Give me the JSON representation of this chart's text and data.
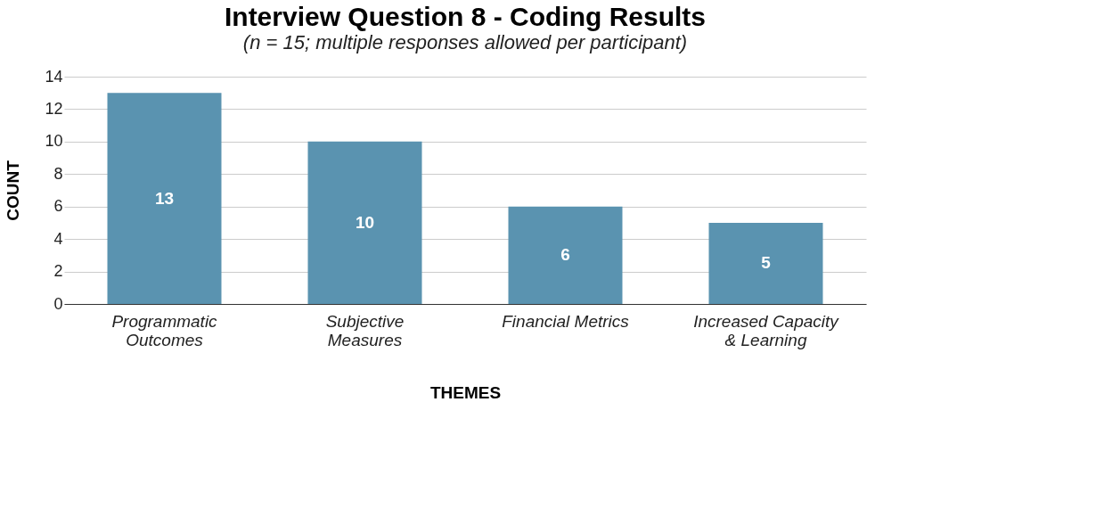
{
  "chart_data": {
    "type": "bar",
    "title": "Interview Question 8 - Coding Results",
    "subtitle": "(n = 15; multiple responses allowed per participant)",
    "xlabel": "THEMES",
    "ylabel": "COUNT",
    "categories": [
      "Programmatic Outcomes",
      "Subjective Measures",
      "Financial Metrics",
      "Increased Capacity & Learning"
    ],
    "values": [
      13,
      10,
      6,
      5
    ],
    "color": "#5a93b0",
    "ylim": [
      0,
      14
    ],
    "yticks": [
      0,
      2,
      4,
      6,
      8,
      10,
      12,
      14
    ],
    "grid": "y",
    "data_labels": true
  }
}
